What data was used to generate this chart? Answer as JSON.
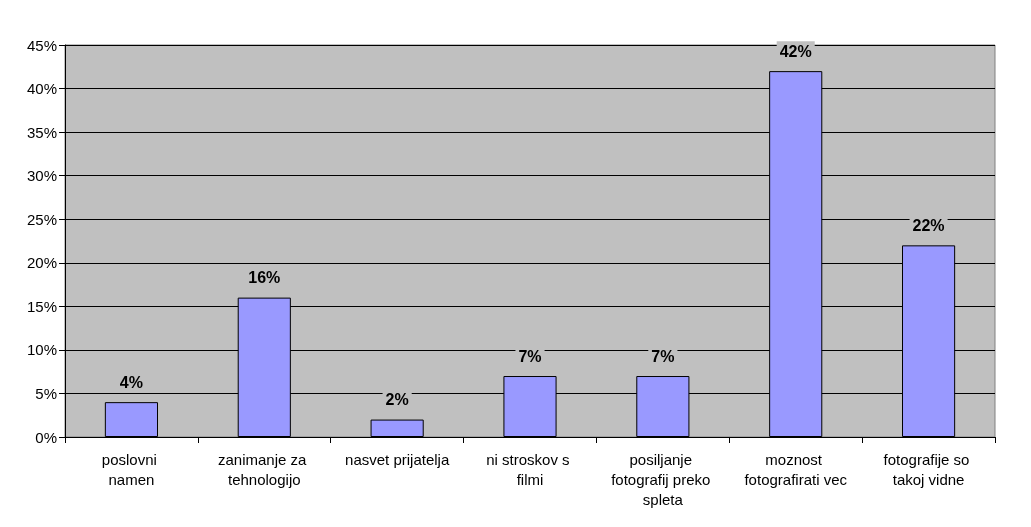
{
  "chart_data": {
    "type": "bar",
    "categories": [
      "poslovni namen",
      "zanimanje za tehnologijo",
      "nasvet prijatelja",
      "ni stroskov s filmi",
      "posiljanje fotografij preko spleta",
      "moznost fotografirati vec",
      "fotografije so takoj vidne"
    ],
    "values": [
      4,
      16,
      2,
      7,
      7,
      42,
      22
    ],
    "value_labels": [
      "4%",
      "16%",
      "2%",
      "7%",
      "7%",
      "42%",
      "22%"
    ],
    "color": "#9999ff",
    "ylim": [
      0,
      45
    ],
    "yticks": [
      {
        "value": 0,
        "label": "0%"
      },
      {
        "value": 5,
        "label": "5%"
      },
      {
        "value": 10,
        "label": "10%"
      },
      {
        "value": 15,
        "label": "15%"
      },
      {
        "value": 20,
        "label": "20%"
      },
      {
        "value": 25,
        "label": "25%"
      },
      {
        "value": 30,
        "label": "30%"
      },
      {
        "value": 35,
        "label": "35%"
      },
      {
        "value": 40,
        "label": "40%"
      },
      {
        "value": 45,
        "label": "45%"
      }
    ],
    "grid": "y"
  }
}
